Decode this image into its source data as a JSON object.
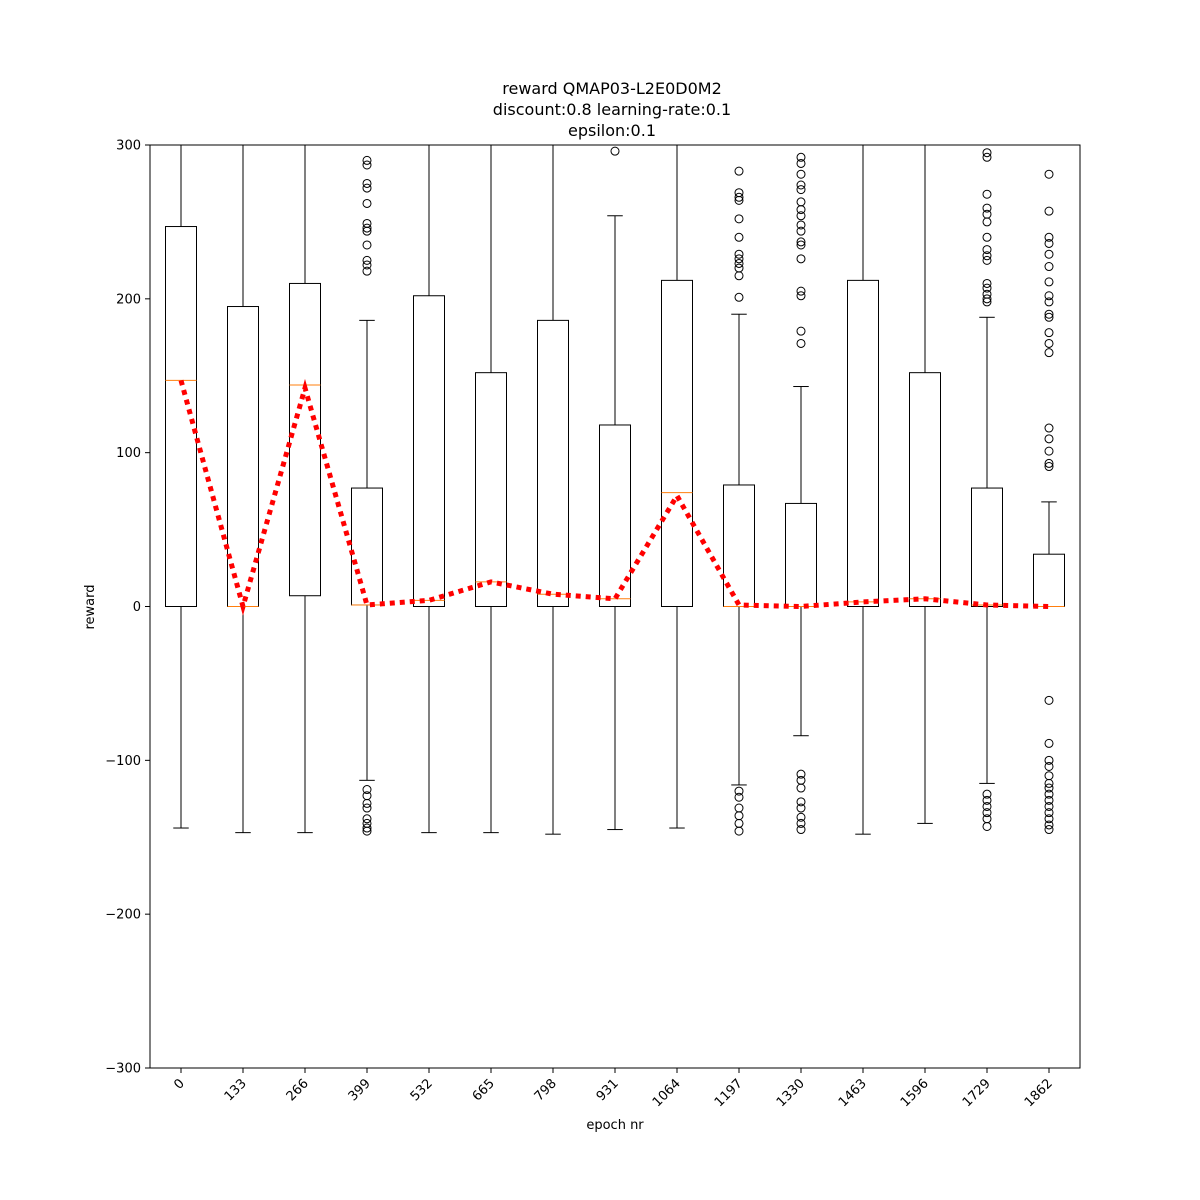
{
  "chart_data": {
    "type": "box",
    "title_lines": [
      "reward QMAP03-L2E0D0M2",
      "discount:0.8 learning-rate:0.1",
      "epsilon:0.1"
    ],
    "xlabel": "epoch nr",
    "ylabel": "reward",
    "ylim": [
      -300,
      300
    ],
    "yticks": [
      -300,
      -200,
      -100,
      0,
      100,
      200,
      300
    ],
    "ytick_labels": [
      "−300",
      "−200",
      "−100",
      "0",
      "100",
      "200",
      "300"
    ],
    "categories": [
      "0",
      "133",
      "266",
      "399",
      "532",
      "665",
      "798",
      "931",
      "1064",
      "1197",
      "1330",
      "1463",
      "1596",
      "1729",
      "1862"
    ],
    "boxes": [
      {
        "q1": 0,
        "median": 147,
        "q3": 247,
        "whisker_low": -144,
        "whisker_high": 300,
        "outliers": []
      },
      {
        "q1": 0,
        "median": 0,
        "q3": 195,
        "whisker_low": -147,
        "whisker_high": 300,
        "outliers": []
      },
      {
        "q1": 7,
        "median": 144,
        "q3": 210,
        "whisker_low": -147,
        "whisker_high": 300,
        "outliers": []
      },
      {
        "q1": 1,
        "median": 1,
        "q3": 77,
        "whisker_low": -113,
        "whisker_high": 186,
        "outliers": [
          290,
          287,
          275,
          272,
          262,
          249,
          246,
          244,
          235,
          225,
          222,
          218,
          -119,
          -123,
          -128,
          -131,
          -138,
          -141,
          -144,
          -146
        ]
      },
      {
        "q1": 0,
        "median": 4,
        "q3": 202,
        "whisker_low": -147,
        "whisker_high": 300,
        "outliers": []
      },
      {
        "q1": 0,
        "median": 16,
        "q3": 152,
        "whisker_low": -147,
        "whisker_high": 300,
        "outliers": []
      },
      {
        "q1": 0,
        "median": 8,
        "q3": 186,
        "whisker_low": -148,
        "whisker_high": 300,
        "outliers": []
      },
      {
        "q1": 0,
        "median": 5,
        "q3": 118,
        "whisker_low": -145,
        "whisker_high": 254,
        "outliers": [
          296
        ]
      },
      {
        "q1": 0,
        "median": 74,
        "q3": 212,
        "whisker_low": -144,
        "whisker_high": 300,
        "outliers": []
      },
      {
        "q1": 0,
        "median": 0,
        "q3": 79,
        "whisker_low": -116,
        "whisker_high": 190,
        "outliers": [
          283,
          269,
          266,
          264,
          252,
          240,
          229,
          226,
          223,
          220,
          215,
          201,
          -120,
          -124,
          -131,
          -136,
          -141,
          -146
        ]
      },
      {
        "q1": 0,
        "median": 0,
        "q3": 67,
        "whisker_low": -84,
        "whisker_high": 143,
        "outliers": [
          292,
          288,
          281,
          274,
          271,
          263,
          258,
          254,
          248,
          244,
          237,
          235,
          226,
          205,
          202,
          179,
          171,
          -109,
          -113,
          -118,
          -127,
          -131,
          -137,
          -141,
          -145
        ]
      },
      {
        "q1": 0,
        "median": 3,
        "q3": 212,
        "whisker_low": -148,
        "whisker_high": 300,
        "outliers": []
      },
      {
        "q1": 0,
        "median": 5,
        "q3": 152,
        "whisker_low": -141,
        "whisker_high": 300,
        "outliers": []
      },
      {
        "q1": 0,
        "median": 1,
        "q3": 77,
        "whisker_low": -115,
        "whisker_high": 188,
        "outliers": [
          295,
          292,
          268,
          259,
          255,
          250,
          240,
          232,
          228,
          225,
          210,
          207,
          203,
          200,
          198,
          -122,
          -126,
          -130,
          -134,
          -138,
          -143
        ]
      },
      {
        "q1": 0,
        "median": 0,
        "q3": 34,
        "whisker_low": 0,
        "whisker_high": 68,
        "outliers": [
          281,
          257,
          240,
          236,
          229,
          221,
          211,
          202,
          198,
          190,
          188,
          178,
          171,
          165,
          116,
          109,
          101,
          93,
          91,
          -61,
          -89,
          -100,
          -104,
          -110,
          -115,
          -118,
          -122,
          -126,
          -130,
          -134,
          -138,
          -142,
          -145
        ]
      }
    ],
    "mean_line": {
      "style": "dotted",
      "values": [
        147,
        0,
        142,
        1,
        4,
        16,
        8,
        5,
        72,
        1,
        0,
        3,
        5,
        1,
        0
      ]
    },
    "colors": {
      "box": "#000000",
      "median": "#ff7f0e",
      "mean_line": "#ff0000",
      "outlier": "#000000"
    }
  }
}
